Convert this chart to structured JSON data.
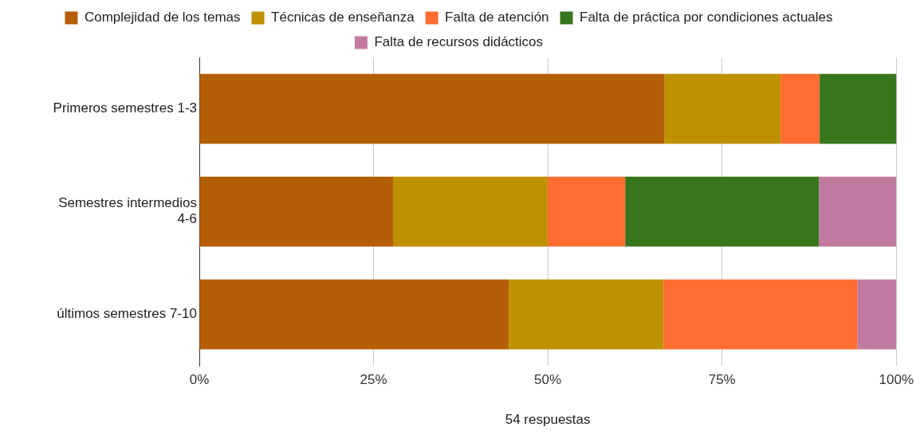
{
  "chart_data": {
    "type": "bar",
    "orientation": "horizontal",
    "stacked": true,
    "xlabel": "54 respuestas",
    "categories": [
      "Primeros semestres 1-3",
      "Semestres intermedios 4-6",
      "últimos semestres 7-10"
    ],
    "series": [
      {
        "name": "Complejidad de los temas",
        "color": "#b45f06",
        "values": [
          66.7,
          27.8,
          44.4
        ]
      },
      {
        "name": "Técnicas de enseñanza",
        "color": "#bf9000",
        "values": [
          16.7,
          22.2,
          22.2
        ]
      },
      {
        "name": "Falta de atención",
        "color": "#ff6d31",
        "values": [
          5.6,
          11.1,
          27.8
        ]
      },
      {
        "name": "Falta de práctica por condiciones actuales",
        "color": "#38761d",
        "values": [
          11.1,
          27.8,
          0
        ]
      },
      {
        "name": "Falta de recursos didácticos",
        "color": "#c27ba0",
        "values": [
          0,
          11.1,
          5.6
        ]
      }
    ],
    "xlim": [
      0,
      100
    ],
    "xticks": [
      {
        "value": 0,
        "label": "0%"
      },
      {
        "value": 25,
        "label": "25%"
      },
      {
        "value": 50,
        "label": "50%"
      },
      {
        "value": 75,
        "label": "75%"
      },
      {
        "value": 100,
        "label": "100%"
      }
    ],
    "grid": "x",
    "legend": "top"
  }
}
